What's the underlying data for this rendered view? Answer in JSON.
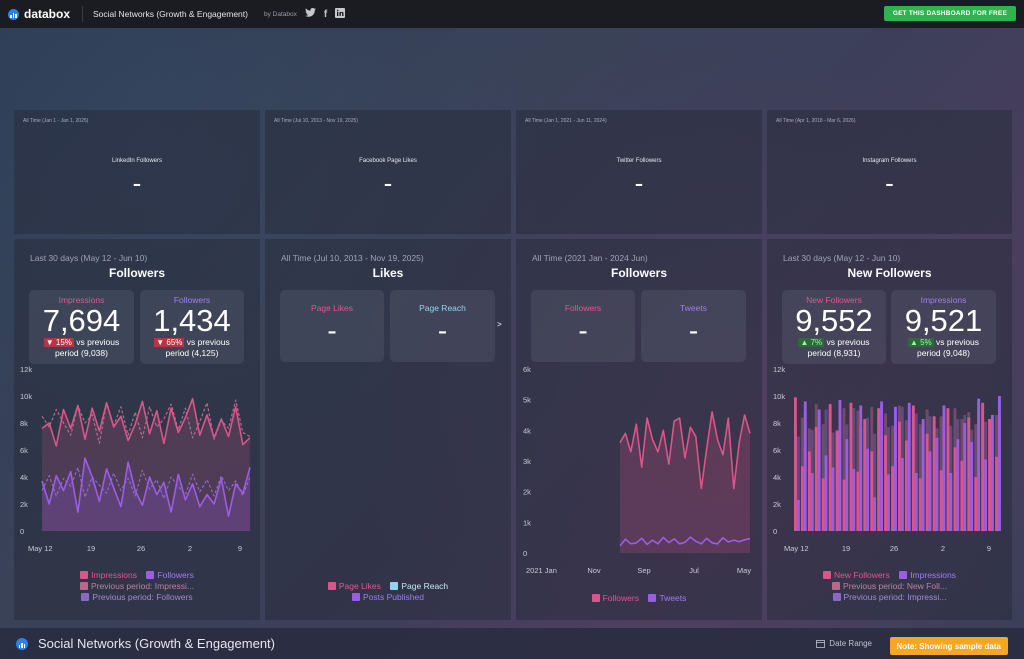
{
  "topbar": {
    "brand": "databox",
    "dashboard_title": "Social Networks (Growth & Engagement)",
    "by_label": "by",
    "by_name": "Databox",
    "cta": "GET THIS DASHBOARD FOR FREE",
    "twitter_icon": "twitter-icon",
    "facebook_icon": "facebook-icon",
    "linkedin_icon": "linkedin-icon"
  },
  "small_cards": [
    {
      "sub": "All Time (Jan 1 - Jan 1, 2025)",
      "title": "LinkedIn Followers",
      "value": "-"
    },
    {
      "sub": "All Time (Jul 10, 2013 - Nov 19, 2025)",
      "title": "Facebook Page Likes",
      "value": "-"
    },
    {
      "sub": "All Time (Jan 1, 2021 - Jun 11, 2024)",
      "title": "Twitter Followers",
      "value": "-"
    },
    {
      "sub": "All Time (Apr 1, 2018 - Mar 6, 2026)",
      "title": "Instagram Followers",
      "value": "-"
    }
  ],
  "cards": [
    {
      "sub": "Last 30 days (May 12 - Jun 10)",
      "title": "Followers",
      "kpis": [
        {
          "label": "Impressions",
          "value": "7,694",
          "delta": "▼ 15%",
          "vs": "vs previous",
          "prev": "period (9,038)"
        },
        {
          "label": "Followers",
          "value": "1,434",
          "delta": "▼ 65%",
          "vs": "vs previous",
          "prev": "period (4,125)"
        }
      ],
      "legend": [
        "Impressions",
        "Followers",
        "Previous period: Impressi...",
        "Previous period: Followers"
      ]
    },
    {
      "sub": "All Time (Jul 10, 2013 - Nov 19, 2025)",
      "title": "Likes",
      "kpis": [
        {
          "label": "Page Likes",
          "value": "-"
        },
        {
          "label": "Page Reach",
          "value": "-"
        }
      ],
      "legend": [
        "Page Likes",
        "Page Reach",
        "Posts Published"
      ]
    },
    {
      "sub": "All Time (2021 Jan - 2024 Jun)",
      "title": "Followers",
      "kpis": [
        {
          "label": "Followers",
          "value": "-"
        },
        {
          "label": "Tweets",
          "value": "-"
        }
      ],
      "legend": [
        "Followers",
        "Tweets"
      ]
    },
    {
      "sub": "Last 30 days (May 12 - Jun 10)",
      "title": "New Followers",
      "kpis": [
        {
          "label": "New Followers",
          "value": "9,552",
          "delta": "▲ 7%",
          "vs": "vs previous",
          "prev": "period (8,931)"
        },
        {
          "label": "Impressions",
          "value": "9,521",
          "delta": "▲ 5%",
          "vs": "vs previous",
          "prev": "period (9,048)"
        }
      ],
      "legend": [
        "New Followers",
        "Impressions",
        "Previous period: New Foll...",
        "Previous period: Impressi..."
      ]
    }
  ],
  "expand_marker": ">",
  "colors": {
    "pink": "#d9558a",
    "purple": "#9b5de5",
    "pink_label": "#e0568f",
    "purple_label": "#a07df0",
    "reach": "#8fd6f0"
  },
  "bottombar": {
    "title": "Social Networks (Growth & Engagement)",
    "date_range": "Date Range",
    "note": "Note: Showing sample data"
  },
  "chart_data": [
    {
      "type": "line",
      "x_ticks": [
        "May 12",
        "19",
        "26",
        "2",
        "9"
      ],
      "y_ticks": [
        "12k",
        "10k",
        "8k",
        "6k",
        "4k",
        "2k",
        "0"
      ],
      "ylim": [
        0,
        12000
      ],
      "series": [
        {
          "name": "Impressions",
          "values": [
            7600,
            8000,
            6300,
            9000,
            7600,
            9300,
            6800,
            9100,
            7400,
            9500,
            7700,
            8500,
            6700,
            7900,
            9600,
            7200,
            8900,
            6500,
            9100,
            7300,
            8400,
            9800,
            7100,
            8600,
            6900,
            8300,
            7000,
            9200,
            6400,
            6900
          ]
        },
        {
          "name": "Followers",
          "values": [
            3700,
            2000,
            4100,
            3000,
            4400,
            1400,
            5400,
            4000,
            2200,
            4600,
            3200,
            1800,
            5100,
            3000,
            1900,
            4000,
            2700,
            3600,
            1400,
            4200,
            2300,
            3500,
            1800,
            2700,
            2000,
            3900,
            1100,
            3500,
            2800,
            4700
          ]
        },
        {
          "name": "Previous period: Impressi...",
          "values": [
            8500,
            7700,
            9000,
            8000,
            7100,
            9300,
            8000,
            8600,
            6500,
            9500,
            7800,
            9200,
            7100,
            8800,
            6900,
            9200,
            7700,
            8300,
            9400,
            7500,
            9100,
            6900,
            8100,
            9500,
            6800,
            8200,
            7600,
            9700,
            7300,
            7000
          ]
        },
        {
          "name": "Previous period: Followers",
          "values": [
            3000,
            4100,
            2600,
            3900,
            3300,
            4700,
            2500,
            4000,
            3400,
            2800,
            4300,
            3000,
            3900,
            2600,
            4500,
            3100,
            3800,
            2400,
            4000,
            3300,
            2700,
            4200,
            2900,
            3800,
            2600,
            4100,
            3000,
            3700,
            2600,
            4000
          ]
        }
      ]
    },
    {
      "type": "line",
      "x_ticks": [
        "2021 Jan",
        "Nov",
        "Sep",
        "Jul",
        "May"
      ],
      "y_ticks": [
        "6k",
        "5k",
        "4k",
        "3k",
        "2k",
        "1k",
        "0"
      ],
      "ylim": [
        0,
        6000
      ],
      "series": [
        {
          "name": "Followers",
          "values": [
            3600,
            3900,
            3300,
            4200,
            2800,
            4400,
            3700,
            3300,
            4000,
            2900,
            4300,
            4400,
            3100,
            4100,
            3800,
            2100,
            3400,
            4600,
            3700,
            3200,
            4400,
            2100,
            3600,
            4500,
            3900
          ]
        },
        {
          "name": "Tweets",
          "values": [
            230,
            450,
            300,
            330,
            480,
            280,
            420,
            300,
            510,
            340,
            460,
            300,
            350,
            520,
            380,
            300,
            480,
            330,
            300,
            500,
            360,
            420,
            370,
            430,
            470
          ]
        }
      ]
    },
    {
      "type": "bar",
      "x_ticks": [
        "May 12",
        "19",
        "26",
        "2",
        "9"
      ],
      "y_ticks": [
        "12k",
        "10k",
        "8k",
        "6k",
        "4k",
        "2k",
        "0"
      ],
      "ylim": [
        0,
        12000
      ],
      "series": [
        {
          "name": "New Followers",
          "values": [
            9900,
            4800,
            5900,
            7700,
            3900,
            9400,
            7400,
            3800,
            9500,
            4400,
            8300,
            5900,
            9100,
            7100,
            4800,
            8100,
            6700,
            9300,
            3900,
            7200,
            8500,
            4500,
            9100,
            6200,
            5200,
            8400,
            4000,
            9500,
            8300,
            5500
          ]
        },
        {
          "name": "Impressions",
          "values": [
            2300,
            9600,
            4300,
            9000,
            5600,
            4700,
            9700,
            6800,
            4600,
            9300,
            6100,
            2500,
            9600,
            4200,
            9200,
            5400,
            9500,
            4300,
            8300,
            5900,
            6900,
            9300,
            4300,
            6800,
            8000,
            6600,
            9800,
            5300,
            8600,
            10000
          ]
        },
        {
          "name": "Previous period: New Foll...",
          "values": [
            8000,
            8400,
            7600,
            9400,
            7900,
            8700,
            7500,
            9100,
            8200,
            8900,
            7700,
            9200,
            8000,
            8700,
            7800,
            9300,
            8200,
            8600,
            7900,
            9000,
            8100,
            8500,
            7700,
            9100,
            8300,
            8800,
            7900,
            9400,
            8100,
            8600
          ]
        },
        {
          "name": "Previous period: Impressi...",
          "values": [
            7000,
            8800,
            7500,
            8200,
            9000,
            7300,
            8600,
            7900,
            9100,
            7600,
            8400,
            7200,
            8900,
            7700,
            8300,
            9200,
            7400,
            8700,
            8000,
            8500,
            7600,
            9000,
            7800,
            8300,
            8600,
            7500,
            8800,
            8100,
            7900,
            8700
          ]
        }
      ]
    }
  ]
}
